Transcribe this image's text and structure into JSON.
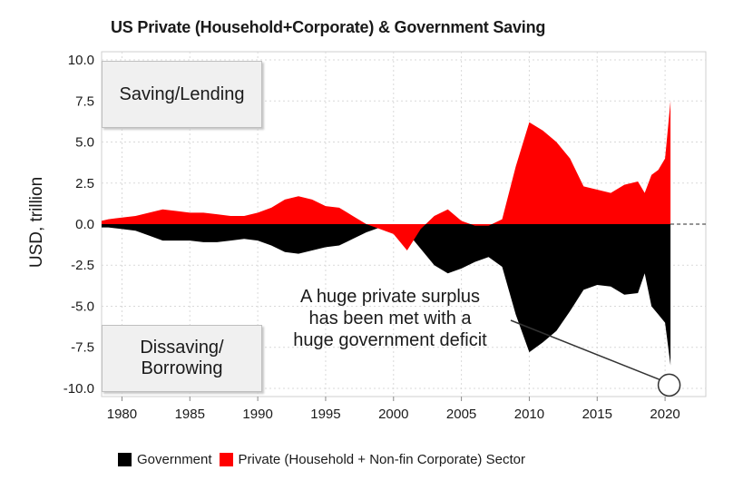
{
  "title": "US Private (Household+Corporate) & Government Saving",
  "boxes": {
    "top": "Saving/Lending",
    "bottom_line1": "Dissaving/",
    "bottom_line2": "Borrowing"
  },
  "annotation": {
    "line1": "A huge private surplus",
    "line2": "has been met with a",
    "line3": "huge government deficit"
  },
  "colors": {
    "government": "#000000",
    "private": "#ff0000",
    "grid": "#d9d9d9"
  },
  "chart_data": {
    "type": "area",
    "title": "US Private (Household+Corporate) & Government Saving",
    "xlabel": "",
    "ylabel": "USD, trillion",
    "xlim": [
      1978.5,
      2023
    ],
    "ylim": [
      -10.5,
      10.5
    ],
    "x_ticks": [
      1980,
      1985,
      1990,
      1995,
      2000,
      2005,
      2010,
      2015,
      2020
    ],
    "y_ticks": [
      10.0,
      7.5,
      5.0,
      2.5,
      0.0,
      -2.5,
      -5.0,
      -7.5,
      -10.0
    ],
    "y_tick_labels": [
      "10.0",
      "7.5",
      "5.0",
      "2.5",
      "0.0",
      "-2.5",
      "-5.0",
      "-7.5",
      "-10.0"
    ],
    "legend_position": "bottom",
    "series": [
      {
        "name": "Government",
        "color": "#000000",
        "x": [
          1978.5,
          1979,
          1980,
          1981,
          1982,
          1983,
          1984,
          1985,
          1986,
          1987,
          1988,
          1989,
          1990,
          1991,
          1992,
          1993,
          1994,
          1995,
          1996,
          1997,
          1998,
          1999,
          2000,
          2001,
          2002,
          2003,
          2004,
          2005,
          2006,
          2007,
          2008,
          2009,
          2010,
          2011,
          2012,
          2013,
          2014,
          2015,
          2016,
          2017,
          2018,
          2018.5,
          2019,
          2019.5,
          2020,
          2020.4
        ],
        "values": [
          -0.2,
          -0.2,
          -0.3,
          -0.4,
          -0.7,
          -1.0,
          -1.0,
          -1.0,
          -1.1,
          -1.1,
          -1.0,
          -0.9,
          -1.0,
          -1.3,
          -1.7,
          -1.8,
          -1.6,
          -1.4,
          -1.3,
          -0.9,
          -0.5,
          -0.2,
          -0.1,
          -0.5,
          -1.5,
          -2.5,
          -3.0,
          -2.7,
          -2.3,
          -2.0,
          -2.6,
          -5.5,
          -7.8,
          -7.2,
          -6.5,
          -5.3,
          -4.0,
          -3.7,
          -3.8,
          -4.3,
          -4.2,
          -3.0,
          -5.0,
          -5.5,
          -6.0,
          -8.6
        ]
      },
      {
        "name": "Private (Household + Non-fin Corporate) Sector",
        "color": "#ff0000",
        "x": [
          1978.5,
          1979,
          1980,
          1981,
          1982,
          1983,
          1984,
          1985,
          1986,
          1987,
          1988,
          1989,
          1990,
          1991,
          1992,
          1993,
          1994,
          1995,
          1996,
          1997,
          1998,
          1999,
          2000,
          2001,
          2002,
          2003,
          2004,
          2005,
          2006,
          2007,
          2008,
          2009,
          2010,
          2011,
          2012,
          2013,
          2014,
          2015,
          2016,
          2017,
          2018,
          2018.5,
          2019,
          2019.5,
          2020,
          2020.4
        ],
        "values": [
          0.2,
          0.3,
          0.4,
          0.5,
          0.7,
          0.9,
          0.8,
          0.7,
          0.7,
          0.6,
          0.5,
          0.5,
          0.7,
          1.0,
          1.5,
          1.7,
          1.5,
          1.1,
          1.0,
          0.5,
          0.0,
          -0.3,
          -0.6,
          -1.6,
          -0.3,
          0.5,
          0.9,
          0.2,
          -0.1,
          -0.1,
          0.3,
          3.5,
          6.2,
          5.7,
          5.0,
          4.0,
          2.3,
          2.1,
          1.9,
          2.4,
          2.6,
          1.9,
          3.0,
          3.3,
          4.0,
          7.5
        ]
      }
    ]
  },
  "legend": {
    "government": "Government",
    "private": "Private (Household + Non-fin Corporate) Sector"
  }
}
